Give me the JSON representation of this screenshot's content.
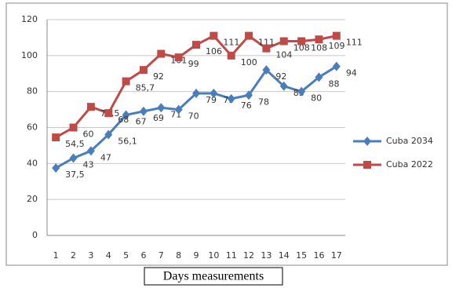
{
  "chart_data": {
    "type": "line",
    "x_label": "Days measurements",
    "categories": [
      "1",
      "2",
      "3",
      "4",
      "5",
      "6",
      "7",
      "8",
      "9",
      "10",
      "11",
      "12",
      "13",
      "14",
      "15",
      "16",
      "17"
    ],
    "series": [
      {
        "name": "Cuba 2034",
        "color": "#4a7ebb",
        "marker": "diamond",
        "values": [
          37.5,
          43,
          47,
          56.1,
          67,
          69,
          71,
          70,
          79,
          79,
          76,
          78,
          92,
          83,
          80,
          88,
          94
        ],
        "value_labels": [
          "37,5",
          "43",
          "47",
          "56,1",
          "67",
          "69",
          "71",
          "70",
          "79",
          "79",
          "76",
          "78",
          "92",
          "83",
          "80",
          "88",
          "94"
        ]
      },
      {
        "name": "Cuba 2022",
        "color": "#be4b48",
        "marker": "square",
        "values": [
          54.5,
          60,
          71.5,
          68,
          85.7,
          92,
          101,
          99,
          106,
          111,
          100,
          111,
          104,
          108,
          108,
          109,
          111
        ],
        "value_labels": [
          "54,5",
          "60",
          "71,5",
          "68",
          "85,7",
          "92",
          "101",
          "99",
          "106",
          "111",
          "100",
          "111",
          "104",
          "108",
          "108",
          "109",
          "111"
        ]
      }
    ],
    "ylim": [
      0,
      120
    ],
    "yticks": [
      0,
      20,
      40,
      60,
      80,
      100,
      120
    ],
    "grid": true,
    "legend": "right"
  }
}
